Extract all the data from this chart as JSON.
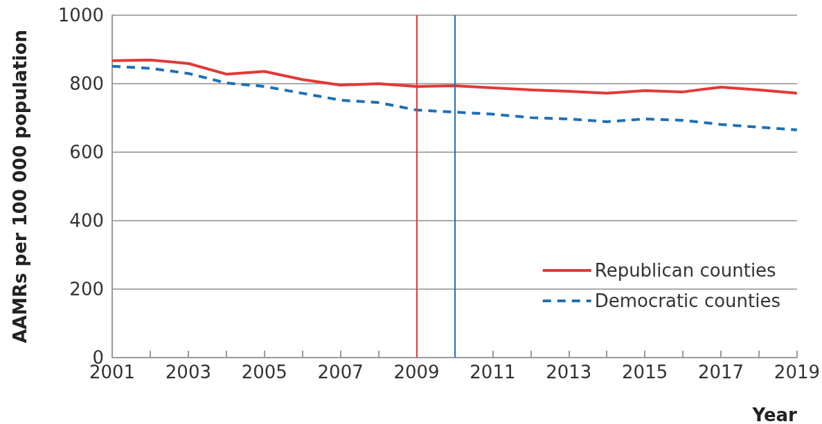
{
  "chart_data": {
    "type": "line",
    "xlabel": "Year",
    "ylabel": "AAMRs per 100 000 population",
    "x": [
      2001,
      2002,
      2003,
      2004,
      2005,
      2006,
      2007,
      2008,
      2009,
      2010,
      2011,
      2012,
      2013,
      2014,
      2015,
      2016,
      2017,
      2018,
      2019
    ],
    "series": [
      {
        "name": "Republican counties",
        "color": "#e03a36",
        "line_style": "solid",
        "values": [
          867,
          869,
          859,
          828,
          836,
          812,
          796,
          800,
          792,
          794,
          788,
          782,
          778,
          772,
          780,
          776,
          790,
          782,
          772
        ]
      },
      {
        "name": "Democratic counties",
        "color": "#1f6fb5",
        "line_style": "dashed",
        "values": [
          851,
          845,
          830,
          802,
          792,
          772,
          752,
          745,
          723,
          717,
          711,
          701,
          697,
          689,
          697,
          693,
          681,
          673,
          665
        ]
      }
    ],
    "xlim": [
      2001,
      2019
    ],
    "xticks": [
      2001,
      {
        "value": 2002,
        "label": null
      },
      2003,
      {
        "value": 2004,
        "label": null
      },
      2005,
      {
        "value": 2006,
        "label": null
      },
      2007,
      {
        "value": 2008,
        "label": null
      },
      2009,
      {
        "value": 2010,
        "label": null
      },
      2011,
      {
        "value": 2012,
        "label": null
      },
      2013,
      {
        "value": 2014,
        "label": null
      },
      2015,
      {
        "value": 2016,
        "label": null
      },
      2017,
      {
        "value": 2018,
        "label": null
      },
      2019
    ],
    "ylim": [
      0,
      1000
    ],
    "yticks": [
      0,
      200,
      400,
      600,
      800,
      1000
    ],
    "ref_lines": [
      {
        "axis": "x",
        "value": 2009,
        "color": "#e03a36"
      },
      {
        "axis": "x",
        "value": 2010,
        "color": "#1f6fb5"
      }
    ],
    "grid": "y",
    "legend": "bottom right",
    "marker": "none"
  }
}
